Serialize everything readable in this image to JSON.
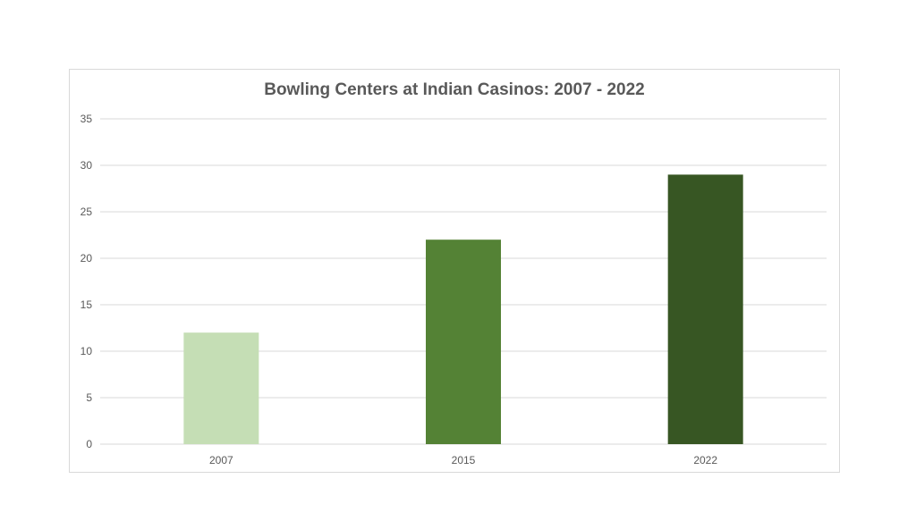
{
  "chart_data": {
    "type": "bar",
    "title": "Bowling Centers at Indian Casinos: 2007 - 2022",
    "categories": [
      "2007",
      "2015",
      "2022"
    ],
    "values": [
      12,
      22,
      29
    ],
    "colors": [
      "#c5deb5",
      "#548235",
      "#375623"
    ],
    "ylim": [
      0,
      35
    ],
    "yticks": [
      "0",
      "5",
      "10",
      "15",
      "20",
      "25",
      "30",
      "35"
    ],
    "grid": true,
    "legend": "none"
  }
}
